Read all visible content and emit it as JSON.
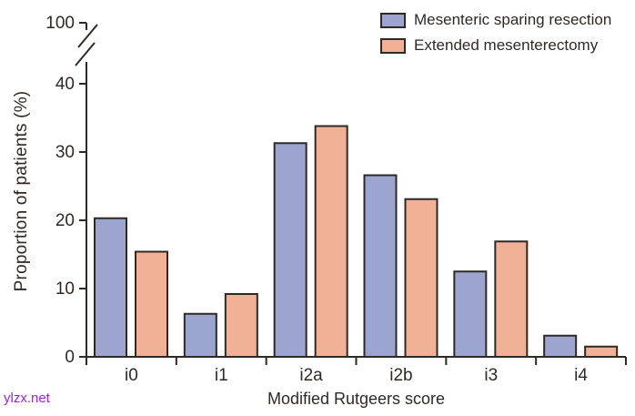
{
  "watermark": {
    "text": "ylzx.net",
    "color": "#a020f0"
  },
  "chart_data": {
    "type": "bar",
    "title": "",
    "xlabel": "Modified Rutgeers score",
    "ylabel": "Proportion of patients (%)",
    "categories": [
      "i0",
      "i1",
      "i2a",
      "i2b",
      "i3",
      "i4"
    ],
    "series": [
      {
        "name": "Mesenteric sparing resection",
        "color": "#9ba5cf",
        "values": [
          20.3,
          6.3,
          31.3,
          26.6,
          12.5,
          3.1
        ]
      },
      {
        "name": "Extended mesenterectomy",
        "color": "#f1b197",
        "values": [
          15.4,
          9.2,
          33.8,
          23.1,
          16.9,
          1.5
        ]
      }
    ],
    "y_axis": {
      "linear_ticks": [
        0,
        10,
        20,
        30,
        40
      ],
      "broken_tick": 100,
      "axis_break": true,
      "ylim_linear": [
        0,
        40
      ]
    },
    "legend_position": "top-right",
    "grid": false,
    "bar_border_color": "#2e2925",
    "axis_color": "#2e2925"
  }
}
